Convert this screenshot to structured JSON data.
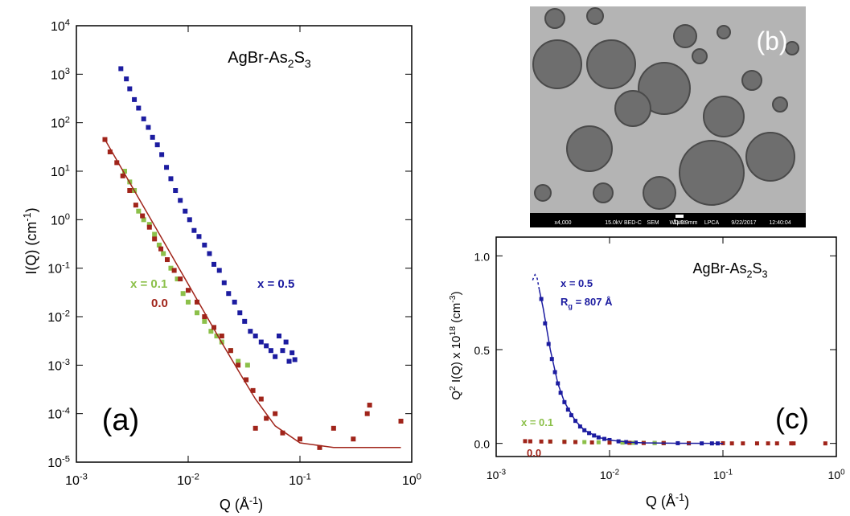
{
  "chart_data": [
    {
      "type": "scatter",
      "panel": "(a)",
      "title": [
        {
          "text": "AgBr-As"
        },
        {
          "text": "2",
          "shift": "sub"
        },
        {
          "text": "S"
        },
        {
          "text": "3",
          "shift": "sub"
        }
      ],
      "xlabel": [
        {
          "text": "Q (Å"
        },
        {
          "text": "-1",
          "shift": "sup"
        },
        {
          "text": ")"
        }
      ],
      "ylabel": [
        {
          "text": "I(Q) (cm"
        },
        {
          "text": "-1",
          "shift": "sup"
        },
        {
          "text": ")"
        }
      ],
      "xlog": true,
      "ylog": true,
      "xlim": [
        0.001,
        1
      ],
      "ylim": [
        1e-05,
        10000
      ],
      "xticks": [
        {
          "value": 0.001,
          "label": "10",
          "sup": "-3"
        },
        {
          "value": 0.01,
          "label": "10",
          "sup": "-2"
        },
        {
          "value": 0.1,
          "label": "10",
          "sup": "-1"
        },
        {
          "value": 1,
          "label": "10",
          "sup": "0"
        }
      ],
      "yticks": [
        {
          "value": 1e-05,
          "label": "10",
          "sup": "-5"
        },
        {
          "value": 0.0001,
          "label": "10",
          "sup": "-4"
        },
        {
          "value": 0.001,
          "label": "10",
          "sup": "-3"
        },
        {
          "value": 0.01,
          "label": "10",
          "sup": "-2"
        },
        {
          "value": 0.1,
          "label": "10",
          "sup": "-1"
        },
        {
          "value": 1,
          "label": "10",
          "sup": "0"
        },
        {
          "value": 10,
          "label": "10",
          "sup": "1"
        },
        {
          "value": 100,
          "label": "10",
          "sup": "2"
        },
        {
          "value": 1000,
          "label": "10",
          "sup": "3"
        },
        {
          "value": 10000,
          "label": "10",
          "sup": "4"
        }
      ],
      "series": [
        {
          "name": "x = 0.5",
          "color": "#1c1ca0",
          "x": [
            0.0025,
            0.0028,
            0.003,
            0.0033,
            0.0036,
            0.004,
            0.0044,
            0.0048,
            0.0053,
            0.0058,
            0.0064,
            0.007,
            0.0077,
            0.0085,
            0.0094,
            0.0103,
            0.0113,
            0.0125,
            0.014,
            0.0155,
            0.017,
            0.019,
            0.021,
            0.023,
            0.026,
            0.029,
            0.032,
            0.036,
            0.04,
            0.045,
            0.05,
            0.055,
            0.06,
            0.065,
            0.07,
            0.075,
            0.08,
            0.085,
            0.09
          ],
          "values": [
            1300,
            800,
            500,
            300,
            200,
            120,
            80,
            50,
            35,
            22,
            12,
            7,
            4,
            2.5,
            1.5,
            1,
            0.6,
            0.45,
            0.3,
            0.2,
            0.12,
            0.09,
            0.05,
            0.03,
            0.02,
            0.012,
            0.008,
            0.005,
            0.004,
            0.003,
            0.0025,
            0.002,
            0.0015,
            0.004,
            0.002,
            0.003,
            0.0012,
            0.0018,
            0.0013
          ]
        },
        {
          "name": "x = 0.1",
          "color": "#8cc04a",
          "x": [
            0.0027,
            0.003,
            0.0033,
            0.0036,
            0.004,
            0.0045,
            0.005,
            0.0055,
            0.006,
            0.007,
            0.008,
            0.009,
            0.01,
            0.012,
            0.014,
            0.016,
            0.018,
            0.02,
            0.024,
            0.028,
            0.034
          ],
          "values": [
            10,
            6,
            4,
            1.5,
            1,
            0.8,
            0.5,
            0.3,
            0.2,
            0.1,
            0.06,
            0.03,
            0.02,
            0.012,
            0.008,
            0.005,
            0.004,
            0.003,
            0.002,
            0.0012,
            0.001
          ]
        },
        {
          "name": "0.0",
          "color": "#a0241a",
          "x": [
            0.0018,
            0.002,
            0.0023,
            0.0026,
            0.003,
            0.0034,
            0.0039,
            0.0045,
            0.005,
            0.0057,
            0.0065,
            0.0075,
            0.0085,
            0.01,
            0.012,
            0.014,
            0.017,
            0.02,
            0.024,
            0.028,
            0.033,
            0.038,
            0.045,
            0.05,
            0.04,
            0.06,
            0.07,
            0.1,
            0.15,
            0.2,
            0.3,
            0.4,
            0.42,
            0.8
          ],
          "values": [
            45,
            25,
            15,
            8,
            4,
            2,
            1.2,
            0.7,
            0.4,
            0.25,
            0.15,
            0.09,
            0.06,
            0.035,
            0.02,
            0.01,
            0.006,
            0.004,
            0.002,
            0.001,
            0.0005,
            0.0003,
            0.0002,
            8e-05,
            5e-05,
            0.0001,
            4e-05,
            3e-05,
            2e-05,
            5e-05,
            3e-05,
            0.0001,
            0.00015,
            7e-05
          ]
        },
        {
          "type": "line",
          "color": "#a0241a",
          "x": [
            0.0018,
            0.003,
            0.005,
            0.01,
            0.02,
            0.03,
            0.04,
            0.06,
            0.1,
            0.2,
            0.5,
            0.8
          ],
          "values": [
            45,
            5.8,
            0.75,
            0.047,
            0.0029,
            0.0006,
            0.0002,
            5.6e-05,
            2.5e-05,
            2e-05,
            2e-05,
            2e-05
          ]
        }
      ]
    },
    {
      "type": "scatter",
      "panel": "(c)",
      "title": [
        {
          "text": "AgBr-As"
        },
        {
          "text": "2",
          "shift": "sub"
        },
        {
          "text": "S"
        },
        {
          "text": "3",
          "shift": "sub"
        }
      ],
      "xlabel": [
        {
          "text": "Q (Å"
        },
        {
          "text": "-1",
          "shift": "sup"
        },
        {
          "text": ")"
        }
      ],
      "ylabel": [
        {
          "text": "Q"
        },
        {
          "text": "2",
          "shift": "sup"
        },
        {
          "text": " I(Q) x 10"
        },
        {
          "text": "18",
          "shift": "sup"
        },
        {
          "text": " (cm"
        },
        {
          "text": "-3",
          "shift": "sup"
        },
        {
          "text": ")"
        }
      ],
      "annotation": [
        {
          "text": "R"
        },
        {
          "text": "g",
          "shift": "sub"
        },
        {
          "text": " = 807 Å"
        }
      ],
      "xlog": true,
      "ylog": false,
      "xlim": [
        0.001,
        1
      ],
      "ylim": [
        -0.07,
        1.1
      ],
      "xticks": [
        {
          "value": 0.001,
          "label": "10",
          "sup": "-3"
        },
        {
          "value": 0.01,
          "label": "10",
          "sup": "-2"
        },
        {
          "value": 0.1,
          "label": "10",
          "sup": "-1"
        },
        {
          "value": 1,
          "label": "10",
          "sup": "0"
        }
      ],
      "yticks": [
        {
          "value": 0,
          "label": "0.0"
        },
        {
          "value": 0.5,
          "label": "0.5"
        },
        {
          "value": 1,
          "label": "1.0"
        }
      ],
      "series": [
        {
          "name": "x = 0.5",
          "color": "#1c1ca0",
          "x": [
            0.0025,
            0.0027,
            0.0029,
            0.0031,
            0.0033,
            0.0035,
            0.0037,
            0.004,
            0.0043,
            0.0046,
            0.005,
            0.0055,
            0.006,
            0.0066,
            0.0073,
            0.008,
            0.009,
            0.01,
            0.012,
            0.014,
            0.017,
            0.02,
            0.025,
            0.03,
            0.04,
            0.05,
            0.065,
            0.08,
            0.09
          ],
          "values": [
            0.77,
            0.64,
            0.53,
            0.45,
            0.38,
            0.32,
            0.27,
            0.22,
            0.18,
            0.15,
            0.12,
            0.09,
            0.07,
            0.055,
            0.042,
            0.032,
            0.024,
            0.018,
            0.011,
            0.007,
            0.004,
            0.003,
            0.002,
            0.001,
            0.001,
            0,
            0,
            0,
            0
          ]
        },
        {
          "name": "x = 0.1",
          "color": "#8cc04a",
          "x": [
            0.003,
            0.004,
            0.005,
            0.006,
            0.008,
            0.01,
            0.013,
            0.016,
            0.02,
            0.025,
            0.03
          ],
          "values": [
            0.01,
            0.01,
            0.008,
            0.007,
            0.006,
            0.005,
            0.004,
            0.003,
            0.003,
            0.002,
            0.002
          ]
        },
        {
          "name": "0.0",
          "color": "#a0241a",
          "x": [
            0.0018,
            0.002,
            0.0025,
            0.003,
            0.004,
            0.005,
            0.007,
            0.01,
            0.015,
            0.02,
            0.03,
            0.05,
            0.1,
            0.12,
            0.15,
            0.2,
            0.25,
            0.3,
            0.4,
            0.42,
            0.8
          ],
          "values": [
            0.012,
            0.011,
            0.01,
            0.01,
            0.008,
            0.007,
            0.005,
            0.004,
            0.003,
            0.002,
            0.002,
            0.001,
            0.001,
            0,
            0,
            0,
            0,
            0,
            0,
            0,
            0
          ]
        },
        {
          "type": "line",
          "color": "#1c1ca0",
          "x": [
            0.0024,
            0.0026,
            0.003,
            0.0035,
            0.004,
            0.005,
            0.006,
            0.008,
            0.01,
            0.015,
            0.02,
            0.04,
            0.1
          ],
          "values": [
            0.82,
            0.72,
            0.5,
            0.32,
            0.22,
            0.12,
            0.07,
            0.032,
            0.018,
            0.006,
            0.003,
            0.0008,
            0
          ]
        },
        {
          "type": "line",
          "style": "dashed",
          "color": "#1c1ca0",
          "x": [
            0.0021,
            0.00215,
            0.0022,
            0.0023,
            0.0024
          ],
          "values": [
            0.87,
            0.89,
            0.9,
            0.88,
            0.82
          ]
        }
      ]
    }
  ],
  "image": {
    "label": "(b)",
    "scale": "1μm",
    "caption": [
      "x4,000",
      "15.0kV BED-C",
      "SEM",
      "WD 9.9mm",
      "LPCA",
      "9/22/2017",
      "12:40:04"
    ]
  }
}
